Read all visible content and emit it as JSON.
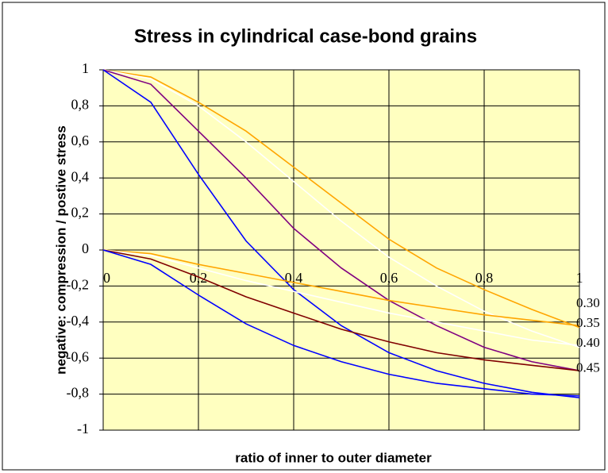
{
  "chart_data": {
    "type": "line",
    "title": "Stress in cylindrical case-bond grains",
    "x_label": "ratio of inner to outer diameter",
    "y_label": "negative: compression / postive stress",
    "x": [
      0,
      0.1,
      0.2,
      0.3,
      0.4,
      0.5,
      0.6,
      0.7,
      0.8,
      0.9,
      1
    ],
    "series": [
      {
        "color": "#ffa500",
        "values": [
          1,
          0.96,
          0.82,
          0.66,
          0.46,
          0.26,
          0.06,
          -0.1,
          -0.22,
          -0.33,
          -0.43
        ]
      },
      {
        "color": "#ffffff",
        "values": [
          1,
          0.95,
          0.8,
          0.6,
          0.38,
          0.16,
          -0.04,
          -0.2,
          -0.34,
          -0.45,
          -0.54
        ]
      },
      {
        "color": "#800080",
        "values": [
          1,
          0.92,
          0.66,
          0.4,
          0.12,
          -0.1,
          -0.28,
          -0.42,
          -0.54,
          -0.62,
          -0.67
        ]
      },
      {
        "color": "#0000ff",
        "values": [
          1,
          0.82,
          0.42,
          0.05,
          -0.22,
          -0.42,
          -0.57,
          -0.67,
          -0.74,
          -0.79,
          -0.82
        ]
      },
      {
        "color": "#ffa500",
        "values": [
          0,
          -0.02,
          -0.08,
          -0.13,
          -0.18,
          -0.23,
          -0.28,
          -0.32,
          -0.36,
          -0.39,
          -0.42
        ]
      },
      {
        "color": "#ffffff",
        "values": [
          0,
          -0.03,
          -0.1,
          -0.17,
          -0.23,
          -0.29,
          -0.35,
          -0.4,
          -0.45,
          -0.5,
          -0.53
        ]
      },
      {
        "color": "#800000",
        "values": [
          0,
          -0.05,
          -0.15,
          -0.26,
          -0.35,
          -0.44,
          -0.51,
          -0.57,
          -0.61,
          -0.64,
          -0.67
        ]
      },
      {
        "color": "#0000ff",
        "values": [
          0,
          -0.08,
          -0.25,
          -0.41,
          -0.53,
          -0.62,
          -0.69,
          -0.74,
          -0.77,
          -0.8,
          -0.81
        ]
      }
    ],
    "annotations": [
      {
        "text": "0.30",
        "y": -0.3
      },
      {
        "text": "0.35",
        "y": -0.41
      },
      {
        "text": "0.40",
        "y": -0.52
      },
      {
        "text": "0.45",
        "y": -0.66
      }
    ],
    "xlim": [
      0,
      1
    ],
    "xticks": [
      0,
      {
        "value": 0.2,
        "label": "0,2"
      },
      {
        "value": 0.4,
        "label": "0,4"
      },
      {
        "value": 0.6,
        "label": "0,6"
      },
      {
        "value": 0.8,
        "label": "0,8"
      },
      1
    ],
    "ylim": [
      -1,
      1
    ],
    "yticks": [
      -1,
      {
        "value": -0.8,
        "label": "-0,8"
      },
      {
        "value": -0.6,
        "label": "-0,6"
      },
      {
        "value": -0.4,
        "label": "-0,4"
      },
      {
        "value": -0.2,
        "label": "-0,2"
      },
      0,
      {
        "value": 0.2,
        "label": "0,2"
      },
      {
        "value": 0.4,
        "label": "0,4"
      },
      {
        "value": 0.6,
        "label": "0,6"
      },
      {
        "value": 0.8,
        "label": "0,8"
      },
      1
    ],
    "grid": true,
    "plot_background": "#ffffc0"
  }
}
